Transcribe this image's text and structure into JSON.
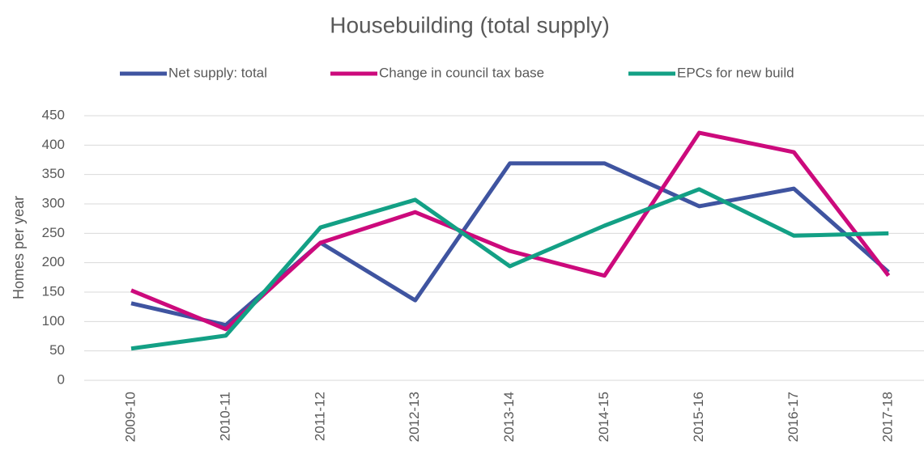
{
  "chart_data": {
    "type": "line",
    "title": "Housebuilding (total supply)",
    "ylabel": "Homes per year",
    "categories": [
      "2009-10",
      "2010-11",
      "2011-12",
      "2012-13",
      "2013-14",
      "2014-15",
      "2015-16",
      "2016-17",
      "2017-18"
    ],
    "series": [
      {
        "name": "Net supply: total",
        "color": "#3f54a0",
        "values": [
          131,
          94,
          234,
          136,
          369,
          369,
          296,
          326,
          184
        ]
      },
      {
        "name": "Change in council tax base",
        "color": "#cc0a7c",
        "values": [
          153,
          87,
          234,
          286,
          220,
          178,
          421,
          388,
          178
        ]
      },
      {
        "name": "EPCs for new build",
        "color": "#13a085",
        "values": [
          54,
          76,
          260,
          307,
          194,
          263,
          325,
          246,
          250
        ]
      }
    ],
    "ylim": [
      0,
      450
    ],
    "yticks": [
      0,
      50,
      100,
      150,
      200,
      250,
      300,
      350,
      400,
      450
    ],
    "grid": true,
    "legend": "top"
  }
}
